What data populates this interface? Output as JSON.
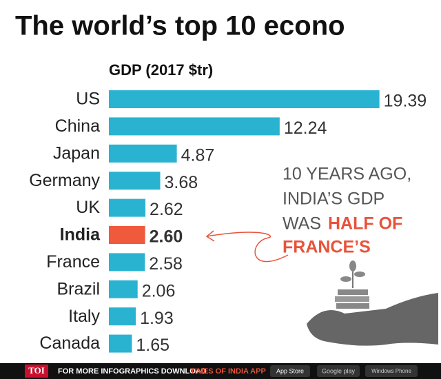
{
  "chart_data": {
    "type": "bar",
    "orientation": "horizontal",
    "title": "The world’s top 10 econo",
    "subtitle": "GDP (2017 $tr)",
    "categories": [
      "US",
      "China",
      "Japan",
      "Germany",
      "UK",
      "India",
      "France",
      "Brazil",
      "Italy",
      "Canada"
    ],
    "values": [
      19.39,
      12.24,
      4.87,
      3.68,
      2.62,
      2.6,
      2.58,
      2.06,
      1.93,
      1.65
    ],
    "value_labels": [
      "19.39",
      "12.24",
      "4.87",
      "3.68",
      "2.62",
      "2.60",
      "2.58",
      "2.06",
      "1.93",
      "1.65"
    ],
    "colors": [
      "#2ab3d1",
      "#2ab3d1",
      "#2ab3d1",
      "#2ab3d1",
      "#2ab3d1",
      "#ef5a3c",
      "#2ab3d1",
      "#2ab3d1",
      "#2ab3d1",
      "#2ab3d1"
    ],
    "xlim": [
      0,
      20
    ],
    "annotation": [
      "10 YEARS AGO,",
      "INDIA’S GDP",
      "WAS",
      "HALF OF",
      "FRANCE’S"
    ]
  },
  "footer": {
    "brand": "TOI",
    "text": "FOR MORE INFOGRAPHICS DOWNLOAD",
    "app": "TIMES OF INDIA APP",
    "stores": [
      "App Store",
      "Google play",
      "Windows Phone"
    ]
  }
}
